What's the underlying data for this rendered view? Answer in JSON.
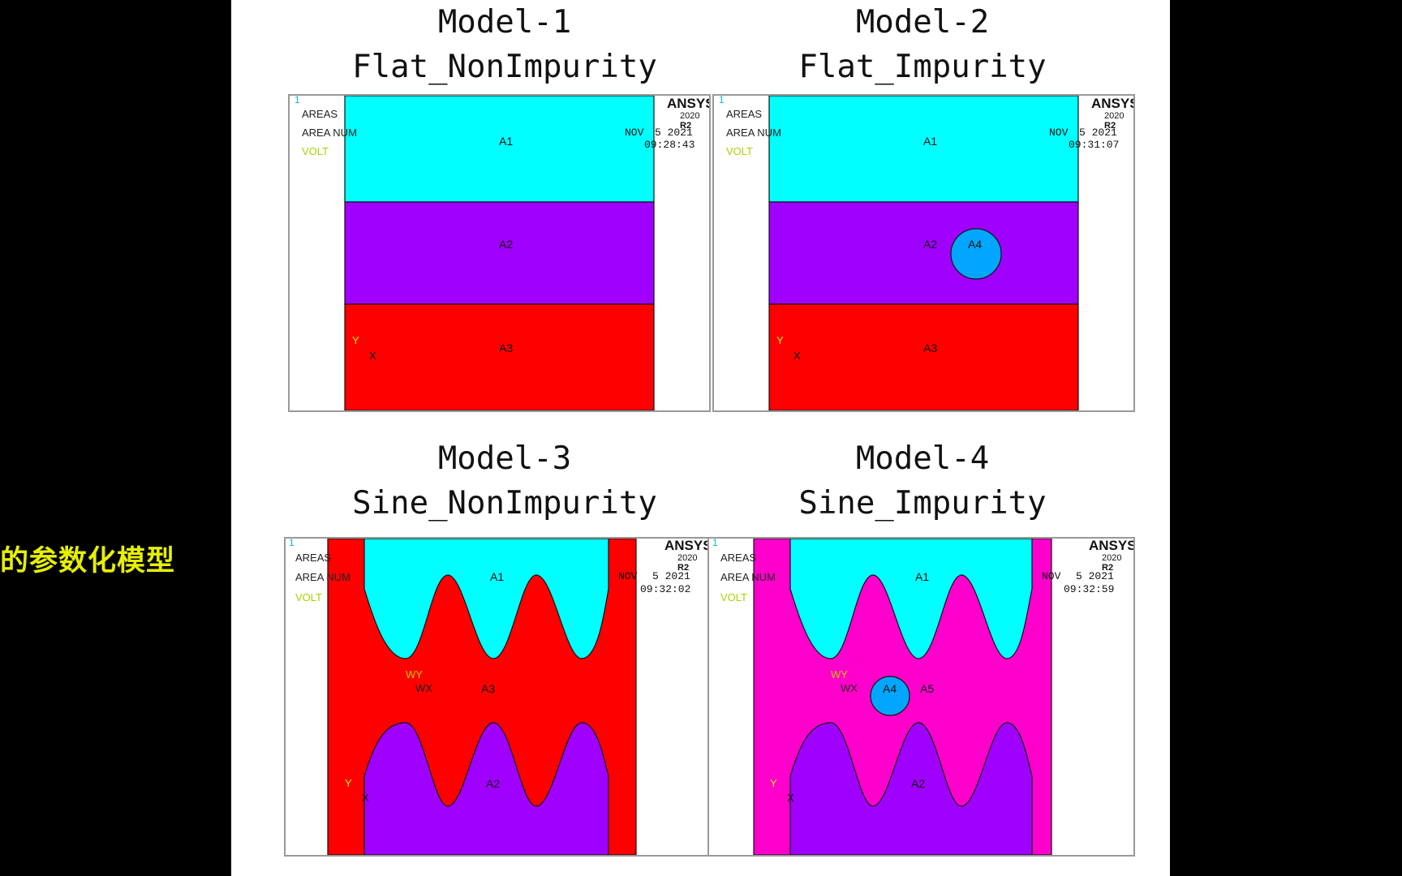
{
  "side_caption": "的参数化模型",
  "panel_common": {
    "areas_label": "AREAS",
    "area_num_label": "AREA NUM",
    "volt_label": "VOLT",
    "index_label": "1",
    "brand": "ANSYS",
    "version_year": "2020",
    "version_rel": "R2",
    "axis_y": "Y",
    "axis_x": "X",
    "wy": "WY",
    "wx": "WX"
  },
  "models": [
    {
      "title": "Model-1",
      "subtitle": "Flat_NonImpurity",
      "date_month": "NOV",
      "date_day": "5 2021",
      "time": "09:28:43",
      "areas": {
        "a1": "A1",
        "a2": "A2",
        "a3": "A3"
      }
    },
    {
      "title": "Model-2",
      "subtitle": "Flat_Impurity",
      "date_month": "NOV",
      "date_day": "5 2021",
      "time": "09:31:07",
      "areas": {
        "a1": "A1",
        "a2": "A2",
        "a3": "A3",
        "a4": "A4"
      }
    },
    {
      "title": "Model-3",
      "subtitle": "Sine_NonImpurity",
      "date_month": "NOV",
      "date_day": "5 2021",
      "time": "09:32:02",
      "areas": {
        "a1": "A1",
        "a2": "A2",
        "a3": "A3"
      }
    },
    {
      "title": "Model-4",
      "subtitle": "Sine_Impurity",
      "date_month": "NOV",
      "date_day": "5 2021",
      "time": "09:32:59",
      "areas": {
        "a1": "A1",
        "a2": "A2",
        "a4": "A4",
        "a5": "A5"
      }
    }
  ],
  "colors": {
    "cyan": "#00ffff",
    "purple": "#a000ff",
    "red": "#ff0000",
    "magenta": "#ff00cc",
    "impurity_blue": "#00a6ff",
    "caption_yellow": "#e6f000"
  }
}
